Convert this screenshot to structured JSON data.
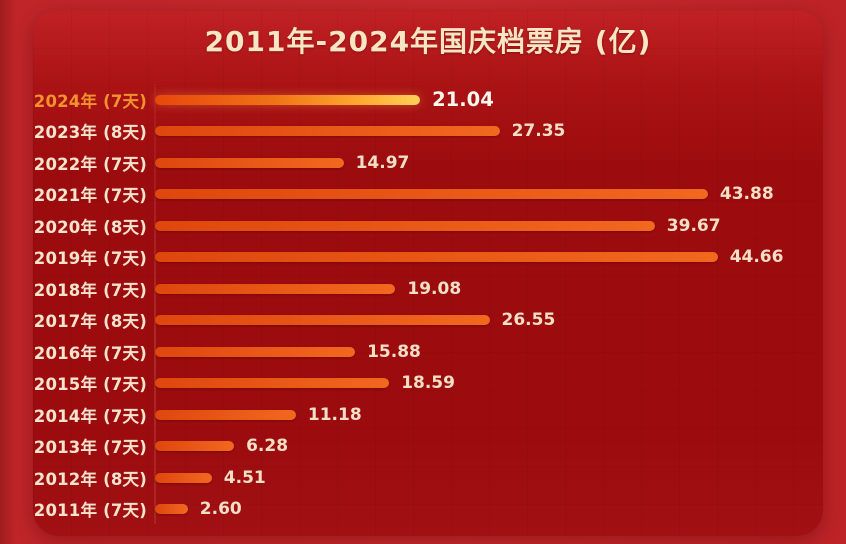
{
  "title": "2011年-2024年国庆档票房 (亿)",
  "chart_data": {
    "type": "bar",
    "orientation": "horizontal",
    "title": "2011年-2024年国庆档票房 (亿)",
    "unit": "亿",
    "categories": [
      "2024年 (7天)",
      "2023年 (8天)",
      "2022年 (7天)",
      "2021年 (7天)",
      "2020年 (8天)",
      "2019年 (7天)",
      "2018年 (7天)",
      "2017年 (8天)",
      "2016年 (7天)",
      "2015年 (7天)",
      "2014年 (7天)",
      "2013年 (7天)",
      "2012年 (8天)",
      "2011年 (7天)"
    ],
    "values": [
      21.04,
      27.35,
      14.97,
      43.88,
      39.67,
      44.66,
      19.08,
      26.55,
      15.88,
      18.59,
      11.18,
      6.28,
      4.51,
      2.6
    ],
    "value_labels": [
      "21.04",
      "27.35",
      "14.97",
      "43.88",
      "39.67",
      "44.66",
      "19.08",
      "26.55",
      "15.88",
      "18.59",
      "11.18",
      "6.28",
      "4.51",
      "2.60"
    ],
    "xlim": [
      0,
      45
    ],
    "highlight_index": 0,
    "legend_position": "none",
    "grid": true
  },
  "colors": {
    "outer-bg": "#c3262a",
    "panel-top": "#c02125",
    "panel-bottom": "#9c0c0e",
    "bar-start": "#de470d",
    "bar-end": "#f2681f",
    "highlight-bar-start": "#e8470c",
    "highlight-bar-end": "#ffd058",
    "category-label": "#f5e3cd",
    "highlight-category-label": "#f0932f",
    "value-label": "#f3dfc6",
    "highlight-value-label": "#fdf8ee",
    "title": "#f6e6c3"
  }
}
